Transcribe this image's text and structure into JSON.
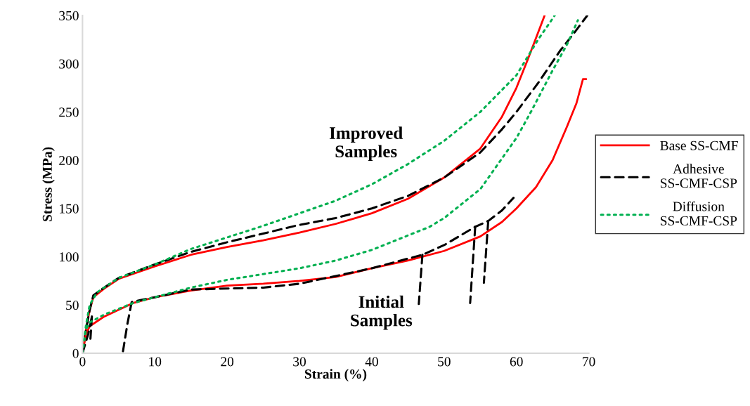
{
  "chart_data": {
    "type": "line",
    "xlabel": "Strain (%)",
    "ylabel": "Stress (MPa)",
    "xlim": [
      0,
      70
    ],
    "xticks": [
      0,
      10,
      20,
      30,
      40,
      50,
      60,
      70
    ],
    "ylim": [
      0,
      350
    ],
    "yticks": [
      0,
      50,
      100,
      150,
      200,
      250,
      300,
      350
    ],
    "grid": false,
    "legend": "right",
    "marker": "none",
    "annotations": [
      "Improved\nSamples",
      "Initial\nSamples"
    ],
    "series": [
      {
        "name": "Base SS-CMF",
        "color": "#ff0000",
        "line_style": "solid",
        "x": [
          0,
          0.5,
          1,
          1.5,
          3,
          5,
          10,
          15,
          20,
          25,
          30,
          35,
          40,
          45,
          50,
          55,
          58,
          60,
          61.5,
          63.9
        ],
        "values": [
          0,
          25,
          45,
          58,
          67,
          77,
          90,
          102,
          110,
          117,
          125,
          134,
          145,
          160,
          182,
          212,
          245,
          275,
          303,
          350
        ]
      },
      {
        "name": "Adhesive\nSS-CMF-CSP",
        "color": "#000000",
        "line_style": "dashed",
        "x": [
          0,
          0.5,
          1,
          1.5,
          3,
          5,
          10,
          15,
          20,
          25,
          30,
          35,
          40,
          45,
          50,
          55,
          58,
          60,
          63,
          66,
          68,
          69.8
        ],
        "values": [
          0,
          25,
          45,
          60,
          68,
          78,
          92,
          105,
          115,
          124,
          133,
          140,
          150,
          163,
          182,
          208,
          232,
          250,
          280,
          313,
          332,
          350
        ]
      },
      {
        "name": "Diffusion\nSS-CMF-CSP",
        "color": "#00b050",
        "line_style": "dotted",
        "x": [
          0,
          0.5,
          1,
          2,
          5,
          10,
          15,
          20,
          25,
          30,
          35,
          40,
          45,
          50,
          55,
          60,
          63,
          65.3
        ],
        "values": [
          0,
          30,
          50,
          63,
          78,
          92,
          108,
          120,
          132,
          145,
          158,
          175,
          196,
          220,
          250,
          288,
          325,
          350
        ]
      },
      {
        "color": "#ff0000",
        "line_style": "solid",
        "x": [
          0,
          0.5,
          1,
          2,
          3,
          5,
          7,
          10,
          15,
          20,
          25,
          30,
          35,
          40,
          45,
          50,
          55,
          58,
          60,
          62.7,
          65,
          67,
          68.3,
          69.2,
          69.6
        ],
        "values": [
          0,
          20,
          28,
          33,
          38,
          45,
          52,
          58,
          65,
          70,
          72,
          75,
          79,
          88,
          96,
          106,
          121,
          136,
          150,
          172,
          200,
          235,
          259,
          284,
          284
        ]
      },
      {
        "color": "#000000",
        "line_style": "dashed",
        "x": [
          0,
          0.8,
          1.3
        ],
        "values": [
          0,
          20,
          38
        ]
      },
      {
        "color": "#000000",
        "line_style": "dashed",
        "x": [
          1.3,
          1.1
        ],
        "values": [
          38,
          15
        ]
      },
      {
        "color": "#000000",
        "line_style": "dashed",
        "x": [
          5.6,
          6.2,
          6.8,
          8,
          10,
          15,
          20,
          25,
          30,
          35,
          40,
          45,
          47,
          50,
          54.3,
          56.1,
          58,
          59.6
        ],
        "values": [
          2,
          30,
          53,
          55,
          58,
          66,
          67,
          68,
          72,
          80,
          88,
          98,
          102,
          112,
          131,
          137,
          148,
          161
        ]
      },
      {
        "color": "#000000",
        "line_style": "dashed",
        "x": [
          47,
          46.5
        ],
        "values": [
          102,
          51
        ]
      },
      {
        "color": "#000000",
        "line_style": "dashed",
        "x": [
          54.3,
          53.6
        ],
        "values": [
          131,
          52
        ]
      },
      {
        "color": "#000000",
        "line_style": "dashed",
        "x": [
          56.1,
          55.5
        ],
        "values": [
          137,
          73
        ]
      },
      {
        "color": "#00b050",
        "line_style": "dotted",
        "x": [
          0,
          0.5,
          1,
          3,
          5,
          7,
          10,
          15,
          20,
          25,
          30,
          35,
          40,
          45,
          48,
          50,
          55,
          60,
          62,
          65,
          67,
          68.5
        ],
        "values": [
          0,
          25,
          32,
          40,
          46,
          52,
          58,
          68,
          76,
          82,
          88,
          96,
          107,
          122,
          131,
          140,
          170,
          223,
          250,
          293,
          320,
          345
        ]
      }
    ]
  }
}
